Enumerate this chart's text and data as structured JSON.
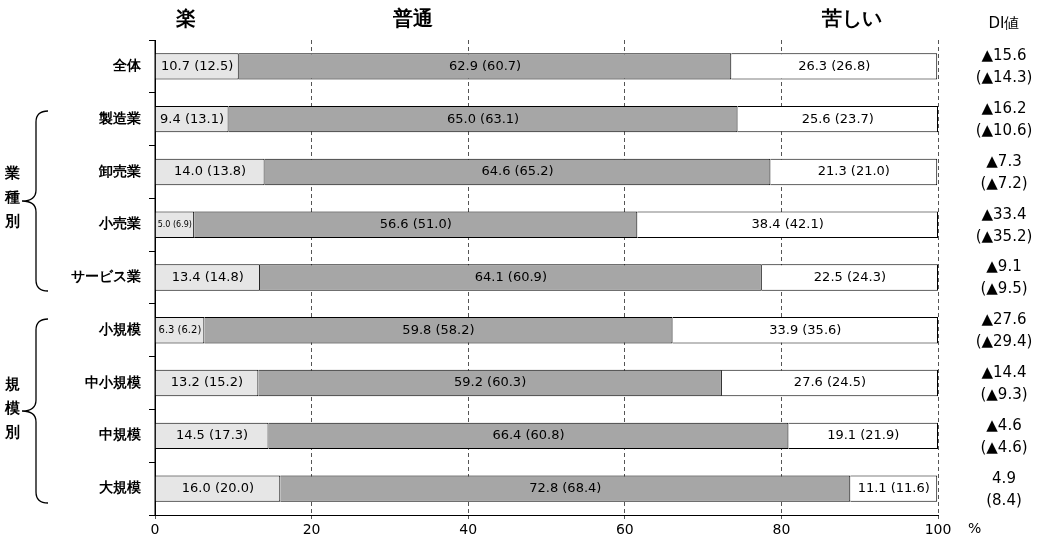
{
  "chart_data": {
    "type": "bar",
    "orientation": "horizontal",
    "stacked": true,
    "categories": [
      "全体",
      "製造業",
      "卸売業",
      "小売業",
      "サービス業",
      "小規模",
      "中小規模",
      "中規模",
      "大規模"
    ],
    "series": [
      {
        "name": "楽",
        "color": "#e6e6e6",
        "values": [
          10.7,
          9.4,
          14.0,
          5.0,
          13.4,
          6.3,
          13.2,
          14.5,
          16.0
        ],
        "value_labels": [
          "10.7 (12.5)",
          "9.4 (13.1)",
          "14.0 (13.8)",
          "5.0 (6.9)",
          "13.4 (14.8)",
          "6.3 (6.2)",
          "13.2 (15.2)",
          "14.5 (17.3)",
          "16.0 (20.0)"
        ]
      },
      {
        "name": "普通",
        "color": "#a6a6a6",
        "values": [
          62.9,
          65.0,
          64.6,
          56.6,
          64.1,
          59.8,
          59.2,
          66.4,
          72.8
        ],
        "value_labels": [
          "62.9 (60.7)",
          "65.0 (63.1)",
          "64.6 (65.2)",
          "56.6 (51.0)",
          "64.1 (60.9)",
          "59.8 (58.2)",
          "59.2 (60.3)",
          "66.4 (60.8)",
          "72.8 (68.4)"
        ]
      },
      {
        "name": "苦しい",
        "color": "#ffffff",
        "values": [
          26.3,
          25.6,
          21.3,
          38.4,
          22.5,
          33.9,
          27.6,
          19.1,
          11.1
        ],
        "value_labels": [
          "26.3 (26.8)",
          "25.6 (23.7)",
          "21.3 (21.0)",
          "38.4 (42.1)",
          "22.5 (24.3)",
          "33.9 (35.6)",
          "27.6 (24.5)",
          "19.1 (21.9)",
          "11.1 (11.6)"
        ]
      }
    ],
    "xlabel": "%",
    "xlim": [
      0,
      100
    ],
    "xticks": [
      0,
      20,
      40,
      60,
      80,
      100
    ],
    "grid": "x",
    "annotations": [
      "DI値",
      "▲15.6\n(▲14.3)",
      "▲16.2\n(▲10.6)",
      "▲7.3\n(▲7.2)",
      "▲33.4\n(▲35.2)",
      "▲9.1\n(▲9.5)",
      "▲27.6\n(▲29.4)",
      "▲14.4\n(▲9.3)",
      "▲4.6\n(▲4.6)",
      "4.9\n(8.4)",
      "業種別",
      "規模別"
    ]
  }
}
